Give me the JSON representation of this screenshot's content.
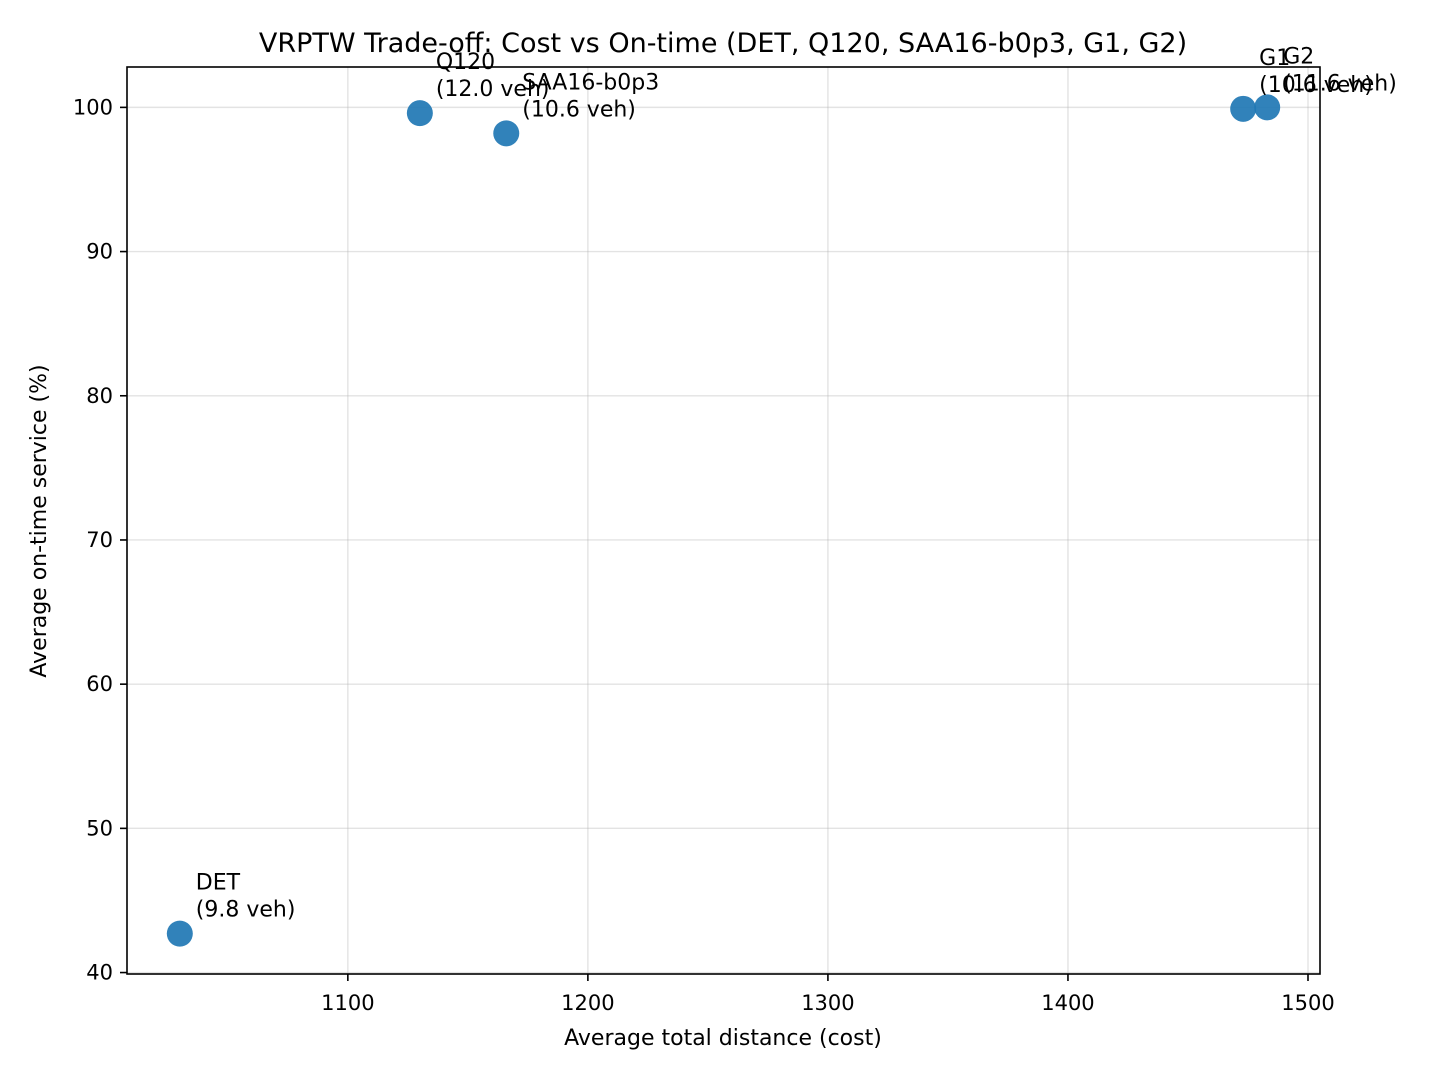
{
  "chart_data": {
    "type": "scatter",
    "title": "VRPTW Trade-off: Cost vs On-time (DET, Q120, SAA16-b0p3, G1, G2)",
    "xlabel": "Average total distance (cost)",
    "ylabel": "Average on-time service (%)",
    "xlim": [
      1008,
      1505
    ],
    "ylim": [
      39.9,
      102.8
    ],
    "xticks": [
      1100,
      1200,
      1300,
      1400,
      1500
    ],
    "yticks": [
      40,
      50,
      60,
      70,
      80,
      90,
      100
    ],
    "grid": true,
    "marker_color": "#1f77b4",
    "points": [
      {
        "name": "DET",
        "vehicles": "(9.8 veh)",
        "x": 1030,
        "y": 42.7
      },
      {
        "name": "Q120",
        "vehicles": "(12.0 veh)",
        "x": 1130,
        "y": 99.6
      },
      {
        "name": "SAA16-b0p3",
        "vehicles": "(10.6 veh)",
        "x": 1166,
        "y": 98.2
      },
      {
        "name": "G1",
        "vehicles": "(10.6 veh)",
        "x": 1473,
        "y": 99.9
      },
      {
        "name": "G2",
        "vehicles": "(11.6 veh)",
        "x": 1483,
        "y": 100.0
      }
    ]
  }
}
